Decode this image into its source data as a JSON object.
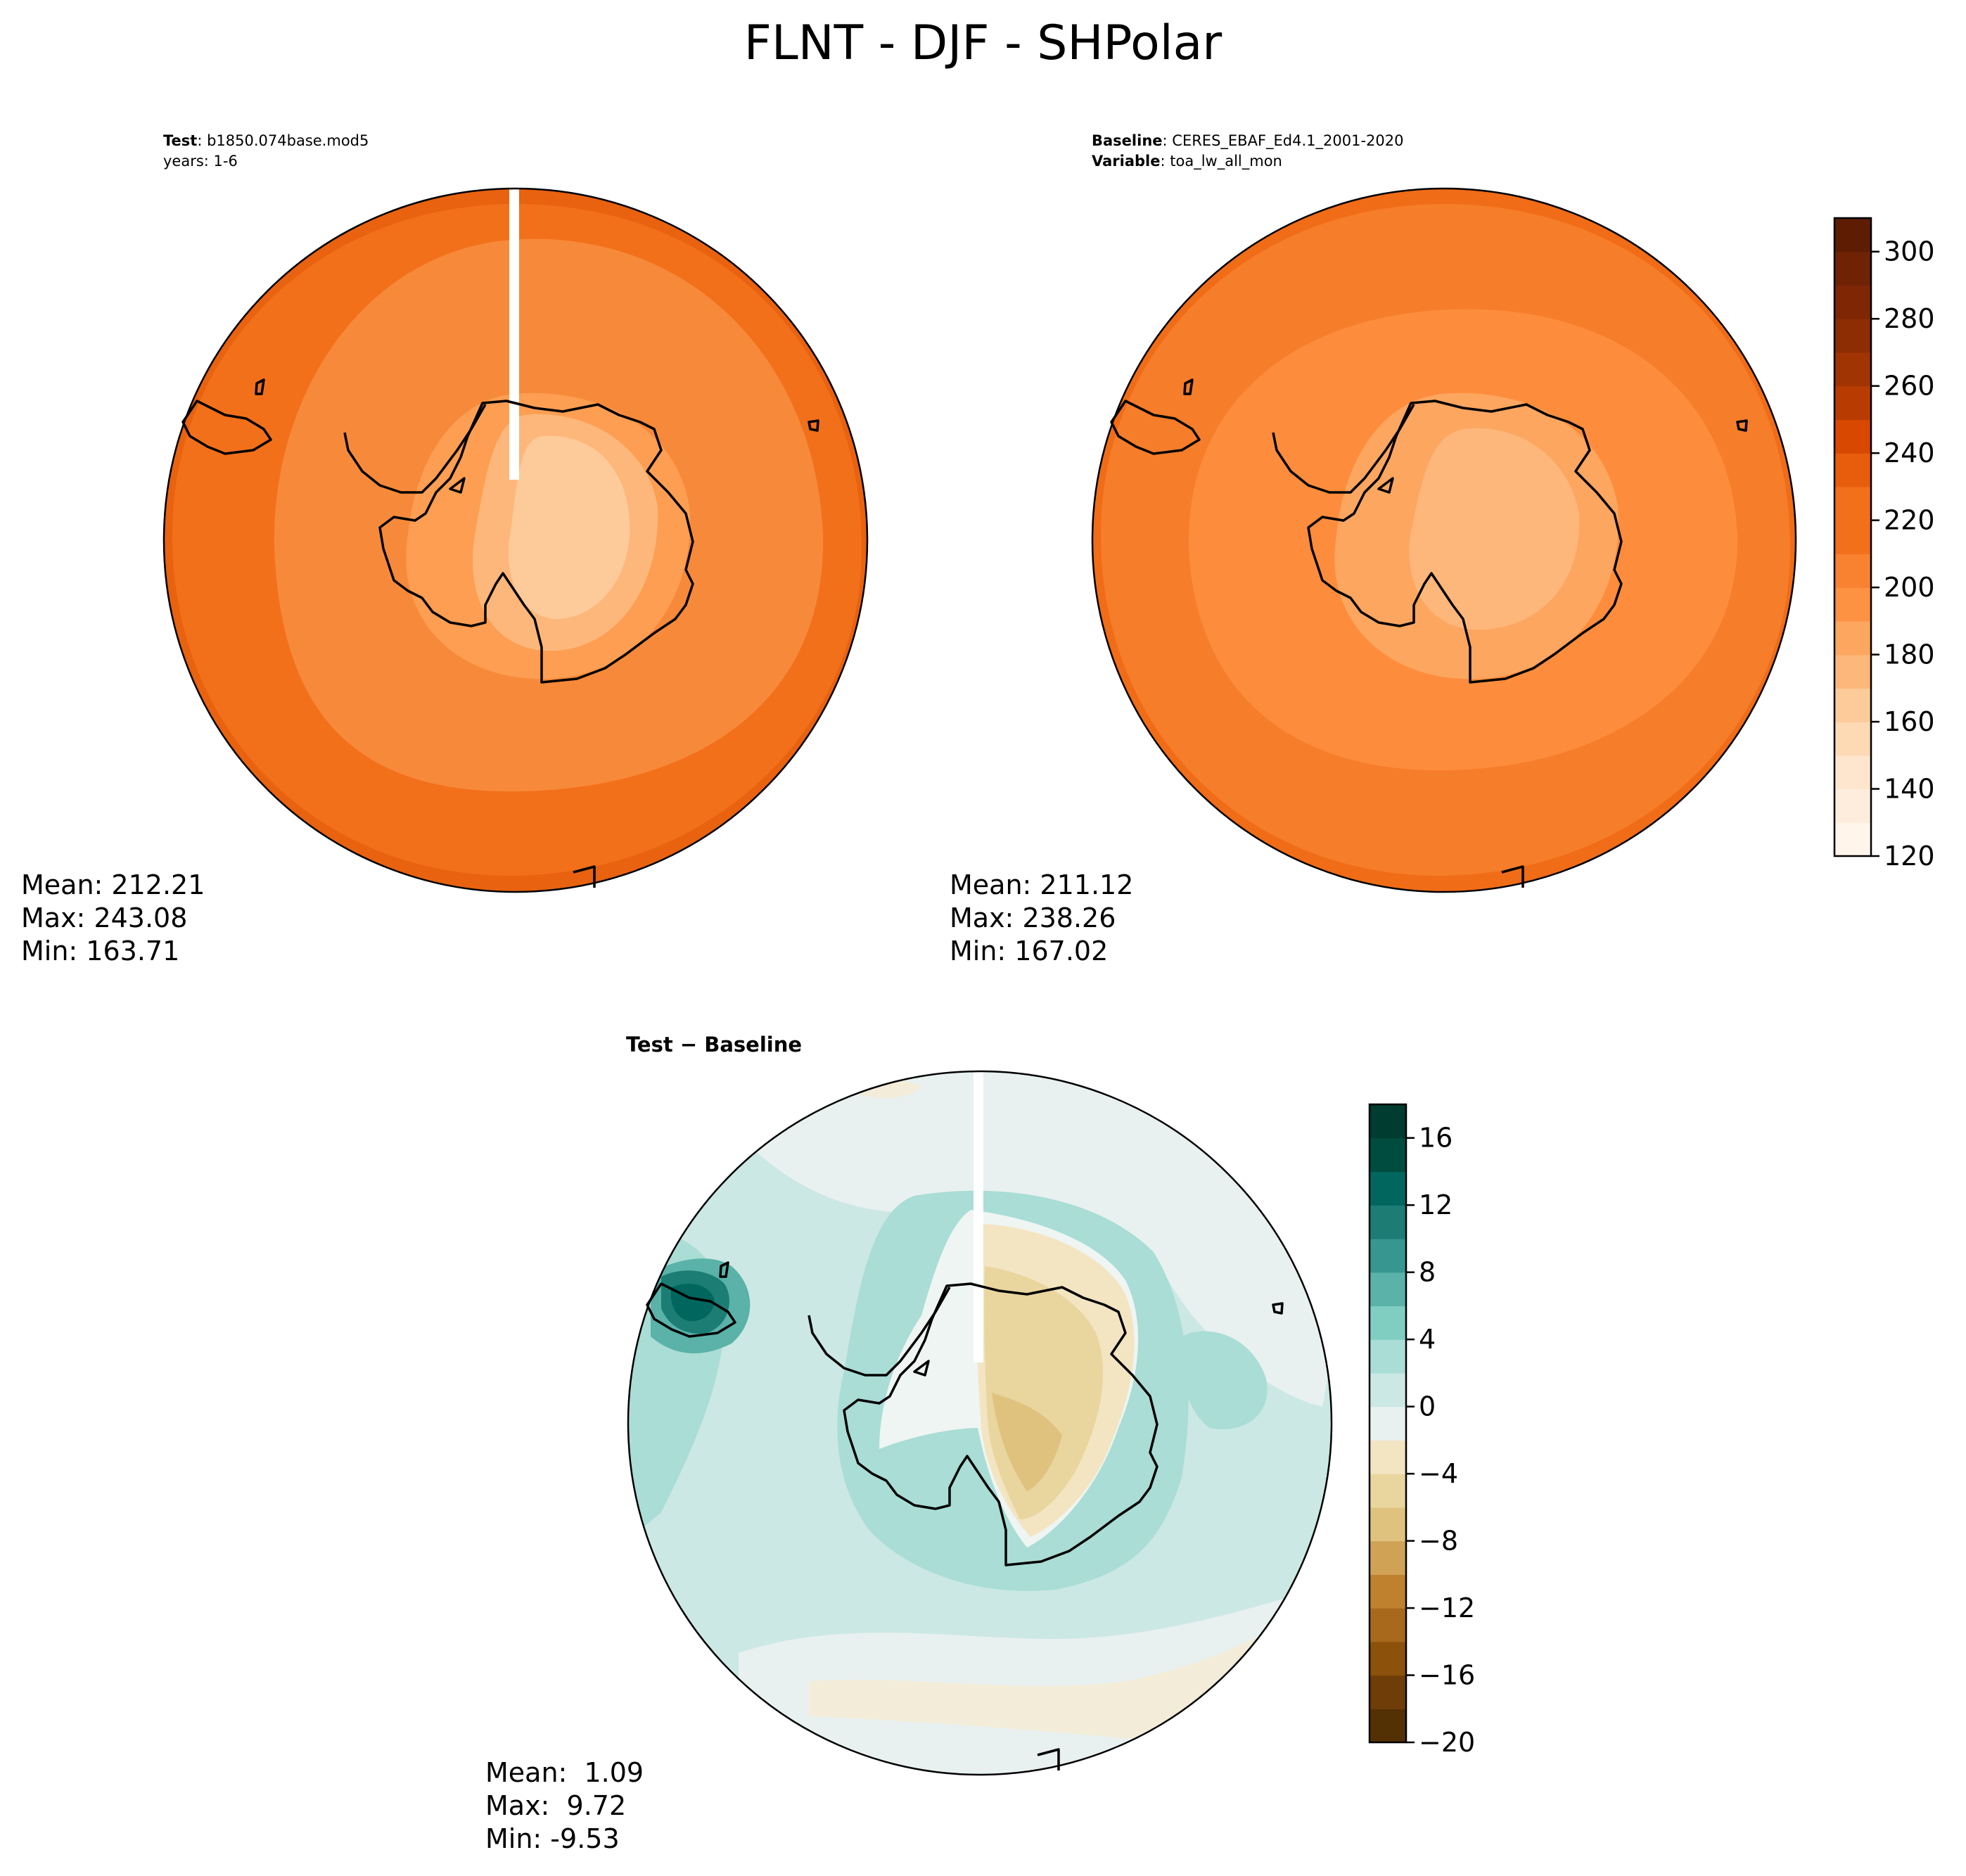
{
  "title": "FLNT - DJF - SHPolar",
  "panels": {
    "test": {
      "header_label": "Test",
      "header_value": "b1850.074base.mod5",
      "header_line2": "years: 1-6",
      "mean": "Mean: 212.21",
      "max": "Max: 243.08",
      "min": "Min: 163.71"
    },
    "baseline": {
      "header_label": "Baseline",
      "header_value": "CERES_EBAF_Ed4.1_2001-2020",
      "header2_label": "Variable",
      "header2_value": "toa_lw_all_mon",
      "mean": "Mean: 211.12",
      "max": "Max: 238.26",
      "min": "Min: 167.02"
    },
    "diff": {
      "title": "Test − Baseline",
      "mean": "Mean:  1.09",
      "max": "Max:  9.72",
      "min": "Min: -9.53"
    }
  },
  "chart_data": [
    {
      "type": "heatmap",
      "name": "test",
      "projection": "south-polar-stereographic",
      "colormap": "Oranges",
      "levels": [
        120,
        130,
        140,
        150,
        160,
        170,
        180,
        190,
        200,
        210,
        220,
        230,
        240,
        250,
        260,
        270,
        280,
        290,
        300,
        310
      ],
      "mean": 212.21,
      "max": 243.08,
      "min": 163.71
    },
    {
      "type": "heatmap",
      "name": "baseline",
      "projection": "south-polar-stereographic",
      "colormap": "Oranges",
      "levels": [
        120,
        130,
        140,
        150,
        160,
        170,
        180,
        190,
        200,
        210,
        220,
        230,
        240,
        250,
        260,
        270,
        280,
        290,
        300,
        310
      ],
      "colorbar_ticks": [
        "120",
        "140",
        "160",
        "180",
        "200",
        "220",
        "240",
        "260",
        "280",
        "300"
      ],
      "mean": 211.12,
      "max": 238.26,
      "min": 167.02
    },
    {
      "type": "heatmap",
      "name": "difference",
      "projection": "south-polar-stereographic",
      "colormap": "BrBG",
      "levels": [
        -20,
        -18,
        -16,
        -14,
        -12,
        -10,
        -8,
        -6,
        -4,
        -2,
        0,
        2,
        4,
        6,
        8,
        10,
        12,
        14,
        16,
        18
      ],
      "colorbar_ticks": [
        "−20",
        "−16",
        "−12",
        "−8",
        "−4",
        "0",
        "4",
        "8",
        "12",
        "16"
      ],
      "mean": 1.09,
      "max": 9.72,
      "min": -9.53
    }
  ],
  "colors": {
    "oranges": [
      "#fff5eb",
      "#feeddc",
      "#fee6ce",
      "#fdd9b4",
      "#fdca99",
      "#fdb77a",
      "#fda660",
      "#fd9243",
      "#f98230",
      "#f3701b",
      "#e85d0c",
      "#d84801",
      "#b83c02",
      "#a13403",
      "#8c2d04",
      "#7f2704",
      "#702204",
      "#5e1d03"
    ],
    "brbg": [
      "#543005",
      "#6f3d08",
      "#8c510a",
      "#a8691d",
      "#bf812d",
      "#cfa255",
      "#dfc27d",
      "#e9d59e",
      "#f3e5c2",
      "#f5f0e0",
      "#e8f1f0",
      "#cbe8e4",
      "#a9ddd5",
      "#80cdc1",
      "#5ab2a8",
      "#35978f",
      "#1b7d74",
      "#01665e",
      "#004c3f",
      "#003c30"
    ]
  }
}
